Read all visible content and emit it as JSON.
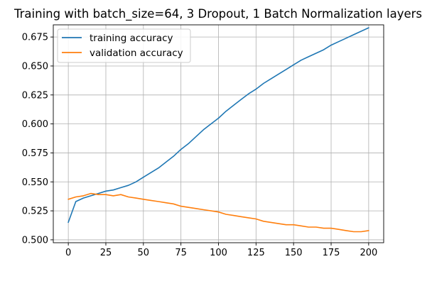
{
  "chart_data": {
    "type": "line",
    "title": "Training with batch_size=64, 3 Dropout, 1 Batch Normalization layers",
    "xlabel": "",
    "ylabel": "",
    "xlim": [
      -10,
      210
    ],
    "ylim": [
      0.4975,
      0.6855
    ],
    "x_ticks": [
      0,
      25,
      50,
      75,
      100,
      125,
      150,
      175,
      200
    ],
    "y_ticks": [
      0.5,
      0.525,
      0.55,
      0.575,
      0.6,
      0.625,
      0.65,
      0.675
    ],
    "y_tick_labels": [
      "0.500",
      "0.525",
      "0.550",
      "0.575",
      "0.600",
      "0.625",
      "0.650",
      "0.675"
    ],
    "grid": true,
    "legend_position": "top-left",
    "x": [
      0,
      5,
      10,
      15,
      20,
      25,
      30,
      35,
      40,
      45,
      50,
      55,
      60,
      65,
      70,
      75,
      80,
      85,
      90,
      95,
      100,
      105,
      110,
      115,
      120,
      125,
      130,
      135,
      140,
      145,
      150,
      155,
      160,
      165,
      170,
      175,
      180,
      185,
      190,
      195,
      200
    ],
    "series": [
      {
        "name": "training accuracy",
        "color": "#1f77b4",
        "values": [
          0.515,
          0.533,
          0.536,
          0.538,
          0.54,
          0.542,
          0.543,
          0.545,
          0.547,
          0.55,
          0.554,
          0.558,
          0.562,
          0.567,
          0.572,
          0.578,
          0.583,
          0.589,
          0.595,
          0.6,
          0.605,
          0.611,
          0.616,
          0.621,
          0.626,
          0.63,
          0.635,
          0.639,
          0.643,
          0.647,
          0.651,
          0.655,
          0.658,
          0.661,
          0.664,
          0.668,
          0.671,
          0.674,
          0.677,
          0.68,
          0.683
        ]
      },
      {
        "name": "validation accuracy",
        "color": "#ff7f0e",
        "values": [
          0.535,
          0.537,
          0.538,
          0.54,
          0.539,
          0.539,
          0.538,
          0.539,
          0.537,
          0.536,
          0.535,
          0.534,
          0.533,
          0.532,
          0.531,
          0.529,
          0.528,
          0.527,
          0.526,
          0.525,
          0.524,
          0.522,
          0.521,
          0.52,
          0.519,
          0.518,
          0.516,
          0.515,
          0.514,
          0.513,
          0.513,
          0.512,
          0.511,
          0.511,
          0.51,
          0.51,
          0.509,
          0.508,
          0.507,
          0.507,
          0.508
        ]
      }
    ]
  }
}
